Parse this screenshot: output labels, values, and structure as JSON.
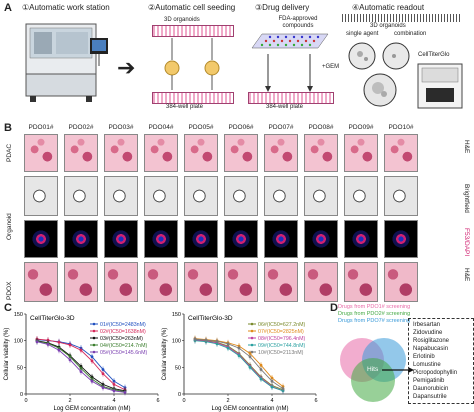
{
  "panel_a": {
    "letter": "A",
    "steps": [
      {
        "title": "①Automatic work station"
      },
      {
        "title": "②Automatic cell seeding",
        "sub_top": "3D organoids",
        "sub_bottom": "384-well plate"
      },
      {
        "title": "③Drug delivery",
        "sub_top": "FDA-approved compounds",
        "sub_mid": "+GEM",
        "sub_bottom": "384-well plate"
      },
      {
        "title": "④Automatic readout",
        "sub_top": "3D organoids",
        "sub_a": "single agent",
        "sub_b": "combination",
        "sub_device": "CellTiterGlo"
      }
    ]
  },
  "panel_b": {
    "letter": "B",
    "columns": [
      "PDO01#",
      "PDO02#",
      "PDO03#",
      "PDO04#",
      "PDO05#",
      "PDO06#",
      "PDO07#",
      "PDO08#",
      "PDO09#",
      "PDO10#"
    ],
    "row_groups": {
      "top": "PDAC",
      "mid": "Organoid",
      "bottom": "PDOX"
    },
    "right_labels": [
      "H&E",
      "Brightfield",
      "F53/DAPI",
      "H&E"
    ]
  },
  "panel_c": {
    "letter": "C"
  },
  "chart_data": [
    {
      "type": "line",
      "title": "CellTiterGlo-3D",
      "xlabel": "Log GEM concentration (nM)",
      "ylabel": "Cellular viability (%)",
      "xlim": [
        0,
        6
      ],
      "ylim": [
        0,
        150
      ],
      "xticks": [
        0,
        2,
        4,
        6
      ],
      "yticks": [
        0,
        50,
        100,
        150
      ],
      "x": [
        0.5,
        1.0,
        1.5,
        2.0,
        2.5,
        3.0,
        3.5,
        4.0,
        4.5
      ],
      "series": [
        {
          "name": "01#(IC50=2483nM)",
          "color": "#1f4fbf",
          "values": [
            102,
            100,
            98,
            94,
            86,
            70,
            46,
            24,
            12
          ]
        },
        {
          "name": "02#(IC50=1638nM)",
          "color": "#d6285a",
          "values": [
            103,
            101,
            97,
            92,
            82,
            62,
            38,
            18,
            8
          ]
        },
        {
          "name": "03#(IC50=263nM)",
          "color": "#111111",
          "values": [
            100,
            96,
            88,
            72,
            52,
            32,
            18,
            10,
            6
          ]
        },
        {
          "name": "04#(IC50=214.7nM)",
          "color": "#3a7d2c",
          "values": [
            99,
            95,
            86,
            70,
            48,
            28,
            14,
            8,
            4
          ]
        },
        {
          "name": "05#(IC50=145.6nM)",
          "color": "#7a3fb0",
          "values": [
            98,
            93,
            82,
            64,
            42,
            24,
            12,
            6,
            3
          ]
        }
      ]
    },
    {
      "type": "line",
      "title": "CellTiterGlo-3D",
      "xlabel": "Log GEM concentration (nM)",
      "ylabel": "Cellular viability (%)",
      "xlim": [
        0,
        6
      ],
      "ylim": [
        0,
        150
      ],
      "xticks": [
        0,
        2,
        4,
        6
      ],
      "yticks": [
        0,
        50,
        100,
        150
      ],
      "x": [
        0.5,
        1.0,
        1.5,
        2.0,
        2.5,
        3.0,
        3.5,
        4.0,
        4.5
      ],
      "series": [
        {
          "name": "06#(IC50=627.2nM)",
          "color": "#7a8a2c",
          "values": [
            102,
            100,
            97,
            90,
            76,
            54,
            32,
            16,
            8
          ]
        },
        {
          "name": "07#(IC50=2825nM)",
          "color": "#e08a1a",
          "values": [
            104,
            102,
            100,
            96,
            90,
            76,
            54,
            30,
            14
          ]
        },
        {
          "name": "08#(IC50=796.4nM)",
          "color": "#c040a0",
          "values": [
            101,
            99,
            96,
            88,
            74,
            52,
            30,
            14,
            6
          ]
        },
        {
          "name": "09#(IC50=744.8nM)",
          "color": "#2aa0a0",
          "values": [
            100,
            98,
            94,
            86,
            72,
            50,
            28,
            13,
            6
          ]
        },
        {
          "name": "10#(IC50=2113nM)",
          "color": "#7a7a7a",
          "values": [
            103,
            101,
            99,
            94,
            86,
            70,
            46,
            24,
            10
          ]
        }
      ]
    }
  ],
  "panel_d": {
    "letter": "D",
    "legend": [
      {
        "text": "Drugs from PDO1# screening",
        "color": "#e86aa8"
      },
      {
        "text": "Drugs from PDO2# screening",
        "color": "#44a944"
      },
      {
        "text": "Drugs from PDO7# screening",
        "color": "#3a9ad8"
      }
    ],
    "center_label": "Hits",
    "hits": [
      "Irbesartan",
      "Zidovudine",
      "Rosiglitazone",
      "Napabucasin",
      "Erlotinib",
      "Lomustine",
      "Picropodophyllin",
      "Pemigatinib",
      "Daunorubicin",
      "Dapansutrile"
    ]
  }
}
